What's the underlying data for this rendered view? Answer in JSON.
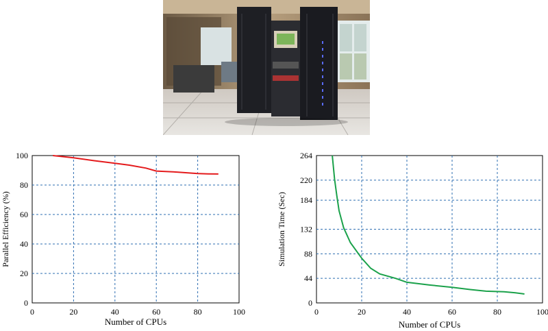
{
  "photo": {
    "subject": "server-rack-photo"
  },
  "chart_data": [
    {
      "type": "line",
      "xlabel": "Number of CPUs",
      "ylabel": "Parallel Efficiency (%)",
      "xlim": [
        0,
        100
      ],
      "ylim": [
        0,
        100
      ],
      "xticks": [
        "0",
        "20",
        "40",
        "60",
        "80",
        "100"
      ],
      "yticks": [
        "0",
        "20",
        "40",
        "60",
        "80",
        "100"
      ],
      "grid": true,
      "color": "#e41a1c",
      "x": [
        10,
        20,
        30,
        40,
        47,
        55,
        60,
        70,
        80,
        85,
        90
      ],
      "y": [
        100,
        98.5,
        96.5,
        94.8,
        93.5,
        91.5,
        89.5,
        88.8,
        87.8,
        87.6,
        87.5
      ]
    },
    {
      "type": "line",
      "xlabel": "Number of CPUs",
      "ylabel": "Simulation Time (Sec)",
      "xlim": [
        0,
        100
      ],
      "ylim": [
        0,
        264
      ],
      "xticks": [
        "0",
        "20",
        "40",
        "60",
        "80",
        "100"
      ],
      "yticks": [
        "0",
        "44",
        "88",
        "132",
        "184",
        "220",
        "264"
      ],
      "grid": true,
      "color": "#1aa14a",
      "x": [
        7,
        8,
        9,
        10,
        12,
        15,
        20,
        24,
        28,
        35,
        40,
        50,
        60,
        68,
        75,
        83,
        88,
        92
      ],
      "y": [
        264,
        222,
        192,
        165,
        135,
        108,
        80,
        62,
        52,
        44,
        37,
        32,
        28,
        24,
        21,
        20,
        18,
        16
      ]
    }
  ]
}
